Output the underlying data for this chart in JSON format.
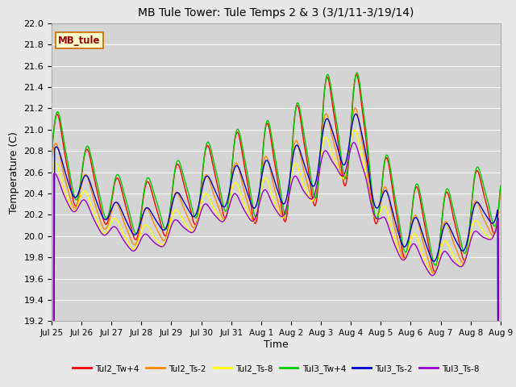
{
  "title": "MB Tule Tower: Tule Temps 2 & 3 (3/1/11-3/19/14)",
  "xlabel": "Time",
  "ylabel": "Temperature (C)",
  "ylim": [
    19.2,
    22.0
  ],
  "xlim": [
    0,
    15
  ],
  "fig_facecolor": "#e8e8e8",
  "ax_facecolor": "#d4d4d4",
  "grid_color": "#ffffff",
  "annotation_text": "MB_tule",
  "annotation_bg": "#ffffcc",
  "annotation_border": "#cc6600",
  "annotation_text_color": "#990000",
  "xtick_labels": [
    "Jul 25",
    "Jul 26",
    "Jul 27",
    "Jul 28",
    "Jul 29",
    "Jul 30",
    "Jul 31",
    "Aug 1",
    "Aug 2",
    "Aug 3",
    "Aug 4",
    "Aug 5",
    "Aug 6",
    "Aug 7",
    "Aug 8",
    "Aug 9"
  ],
  "yticks": [
    19.2,
    19.4,
    19.6,
    19.8,
    20.0,
    20.2,
    20.4,
    20.6,
    20.8,
    21.0,
    21.2,
    21.4,
    21.6,
    21.8,
    22.0
  ],
  "series_colors": {
    "Tul2_Tw+4": "#ff0000",
    "Tul2_Ts-2": "#ff8800",
    "Tul2_Ts-8": "#ffff00",
    "Tul3_Tw+4": "#00cc00",
    "Tul3_Ts-2": "#0000cc",
    "Tul3_Ts-8": "#9900cc"
  },
  "lw": 1.0
}
